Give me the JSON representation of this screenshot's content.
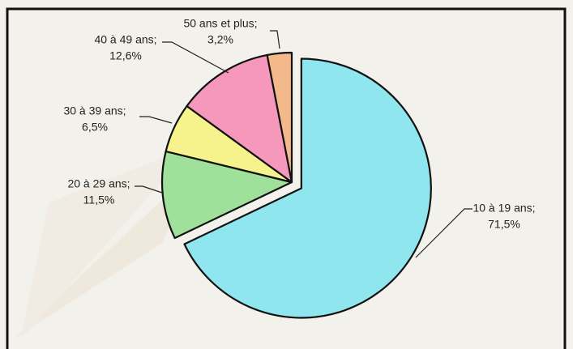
{
  "chart_data": {
    "type": "pie",
    "categories": [
      "10 à 19 ans;",
      "20 à 29 ans;",
      "30 à 39 ans;",
      "40 à 49 ans;",
      "50 ans et plus;"
    ],
    "values": [
      71.5,
      11.5,
      6.5,
      12.6,
      3.2
    ],
    "value_labels": [
      "71,5%",
      "11,5%",
      "6,5%",
      "12,6%",
      "3,2%"
    ],
    "colors": [
      "#8fe6ee",
      "#9fe09b",
      "#f7f38c",
      "#f598bb",
      "#f4b98b"
    ]
  }
}
